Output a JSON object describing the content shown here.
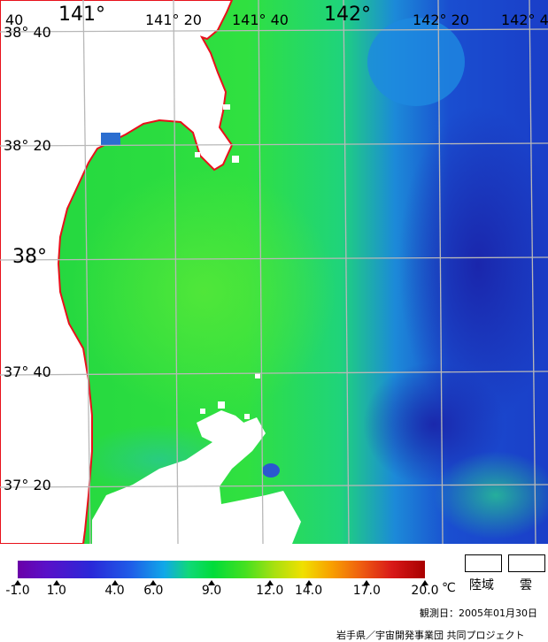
{
  "map": {
    "longitude_labels": [
      {
        "text": "141°",
        "size": "big"
      },
      {
        "text": "141° 20",
        "size": "small"
      },
      {
        "text": "141° 40",
        "size": "small"
      },
      {
        "text": "142°",
        "size": "big"
      },
      {
        "text": "142° 20",
        "size": "small"
      },
      {
        "text": "142° 4",
        "size": "small"
      }
    ],
    "latitude_labels": [
      {
        "text": "38° 40",
        "size": "small"
      },
      {
        "text": "38° 20",
        "size": "small"
      },
      {
        "text": "38°",
        "size": "big"
      },
      {
        "text": "37° 40",
        "size": "small"
      },
      {
        "text": "37° 20",
        "size": "small"
      }
    ],
    "corner_label": "40",
    "colors": {
      "land": "#ffffff",
      "coastline": "#e8101a",
      "grid": "#b8b8b8",
      "warm_water": "#2ce53a",
      "cold_water": "#1d5ad8"
    }
  },
  "legend": {
    "ticks": [
      {
        "label": "-1.0",
        "value": -1.0
      },
      {
        "label": "1.0",
        "value": 1.0
      },
      {
        "label": "4.0",
        "value": 4.0
      },
      {
        "label": "6.0",
        "value": 6.0
      },
      {
        "label": "9.0",
        "value": 9.0
      },
      {
        "label": "12.0",
        "value": 12.0
      },
      {
        "label": "14.0",
        "value": 14.0
      },
      {
        "label": "17.0",
        "value": 17.0
      },
      {
        "label": "20.0",
        "value": 20.0
      }
    ],
    "unit": "℃",
    "land_label": "陸域",
    "cloud_label": "雲"
  },
  "observation_date": "観測日：2005年01月30日",
  "credit": "岩手県／宇宙開発事業団 共同プロジェクト"
}
